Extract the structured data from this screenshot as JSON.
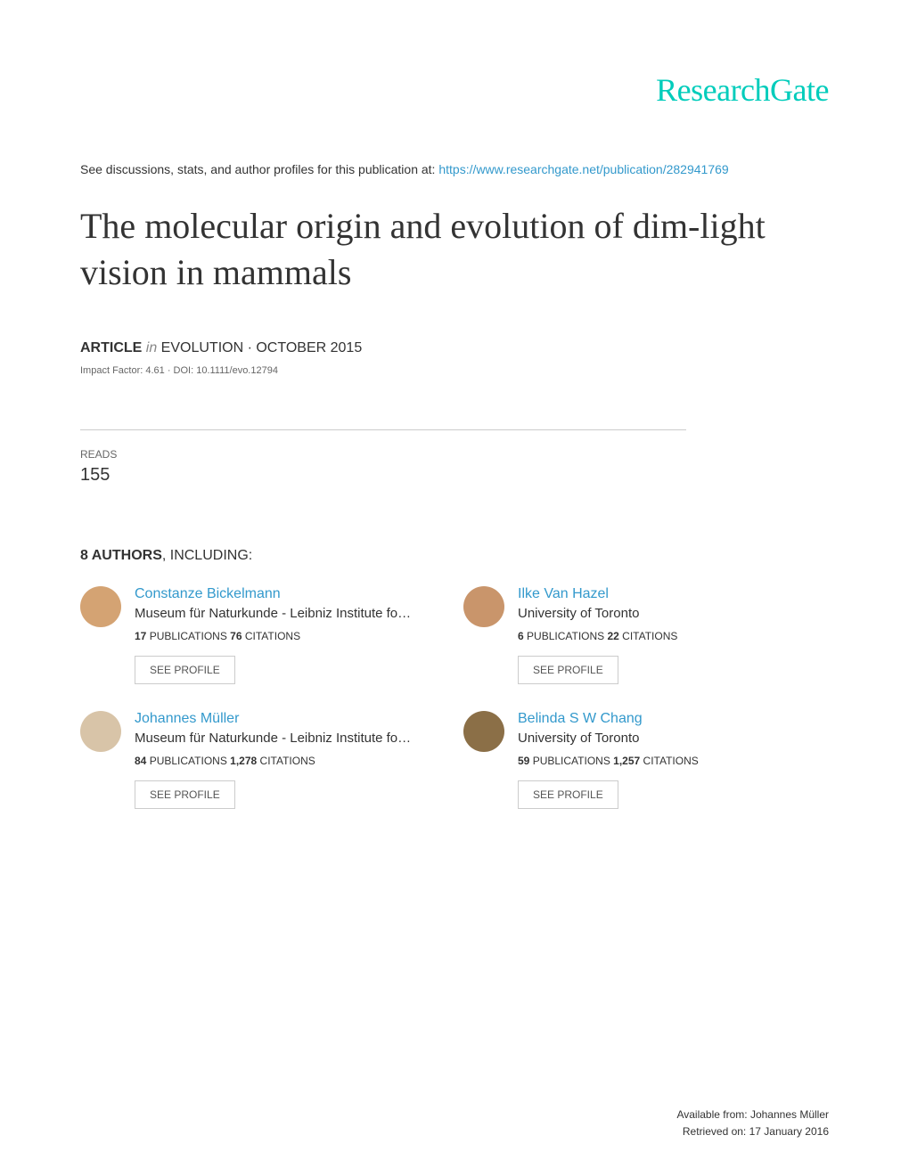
{
  "logo": "ResearchGate",
  "intro": {
    "text": "See discussions, stats, and author profiles for this publication at: ",
    "link": "https://www.researchgate.net/publication/282941769"
  },
  "title": "The molecular origin and evolution of dim-light vision in mammals",
  "article": {
    "label": "ARTICLE",
    "in": "in",
    "journal": " EVOLUTION · OCTOBER 2015",
    "impact": "Impact Factor: 4.61 · DOI: 10.1111/evo.12794"
  },
  "reads": {
    "label": "READS",
    "count": "155"
  },
  "authorsHeader": {
    "count": "8 AUTHORS",
    "suffix": ", INCLUDING:"
  },
  "authors": [
    {
      "name": "Constanze Bickelmann",
      "affiliation": "Museum für Naturkunde - Leibniz Institute fo…",
      "pubs": "17",
      "pubsLabel": " PUBLICATIONS   ",
      "cites": "76",
      "citesLabel": " CITATIONS",
      "avatarColor": "#d4a373"
    },
    {
      "name": "Ilke Van Hazel",
      "affiliation": "University of Toronto",
      "pubs": "6",
      "pubsLabel": " PUBLICATIONS   ",
      "cites": "22",
      "citesLabel": " CITATIONS",
      "avatarColor": "#c9956b"
    },
    {
      "name": "Johannes Müller",
      "affiliation": "Museum für Naturkunde - Leibniz Institute fo…",
      "pubs": "84",
      "pubsLabel": " PUBLICATIONS   ",
      "cites": "1,278",
      "citesLabel": " CITATIONS",
      "avatarColor": "#d8c4a8"
    },
    {
      "name": "Belinda S W Chang",
      "affiliation": "University of Toronto",
      "pubs": "59",
      "pubsLabel": " PUBLICATIONS   ",
      "cites": "1,257",
      "citesLabel": " CITATIONS",
      "avatarColor": "#8b6f47"
    }
  ],
  "seeProfile": "SEE PROFILE",
  "footer": {
    "line1": "Available from: Johannes Müller",
    "line2": "Retrieved on: 17 January 2016"
  },
  "colors": {
    "brand": "#00ccbb",
    "link": "#3399cc",
    "text": "#333333",
    "muted": "#666666"
  }
}
